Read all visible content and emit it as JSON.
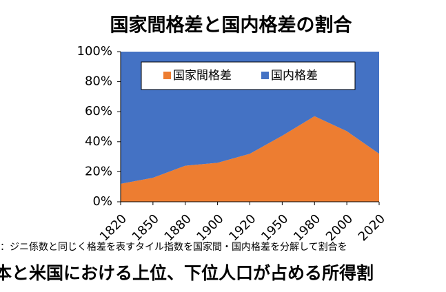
{
  "chart_data": {
    "type": "stacked_area",
    "title": "国家間格差と国内格差の割合",
    "categories": [
      "1820",
      "1850",
      "1880",
      "1900",
      "1920",
      "1950",
      "1980",
      "2000",
      "2020"
    ],
    "series": [
      {
        "name": "国家間格差",
        "color": "#ed7d31",
        "values": [
          12,
          16,
          24,
          26,
          32,
          44,
          57,
          47,
          32
        ]
      },
      {
        "name": "国内格差",
        "color": "#4472c4",
        "values": [
          88,
          84,
          76,
          74,
          68,
          56,
          43,
          53,
          68
        ]
      }
    ],
    "ylim": [
      0,
      100
    ],
    "yticks": [
      {
        "value": 0,
        "label": "0%"
      },
      {
        "value": 20,
        "label": "20%"
      },
      {
        "value": 40,
        "label": "40%"
      },
      {
        "value": 60,
        "label": "60%"
      },
      {
        "value": 80,
        "label": "80%"
      },
      {
        "value": 100,
        "label": "100%"
      }
    ],
    "legend": "top",
    "note": "：ジニ係数と同じく格差を表すタイル指数を国家間・国内格差を分解して割合を",
    "caption": "本と米国における上位、下位人口が占める所得割"
  }
}
